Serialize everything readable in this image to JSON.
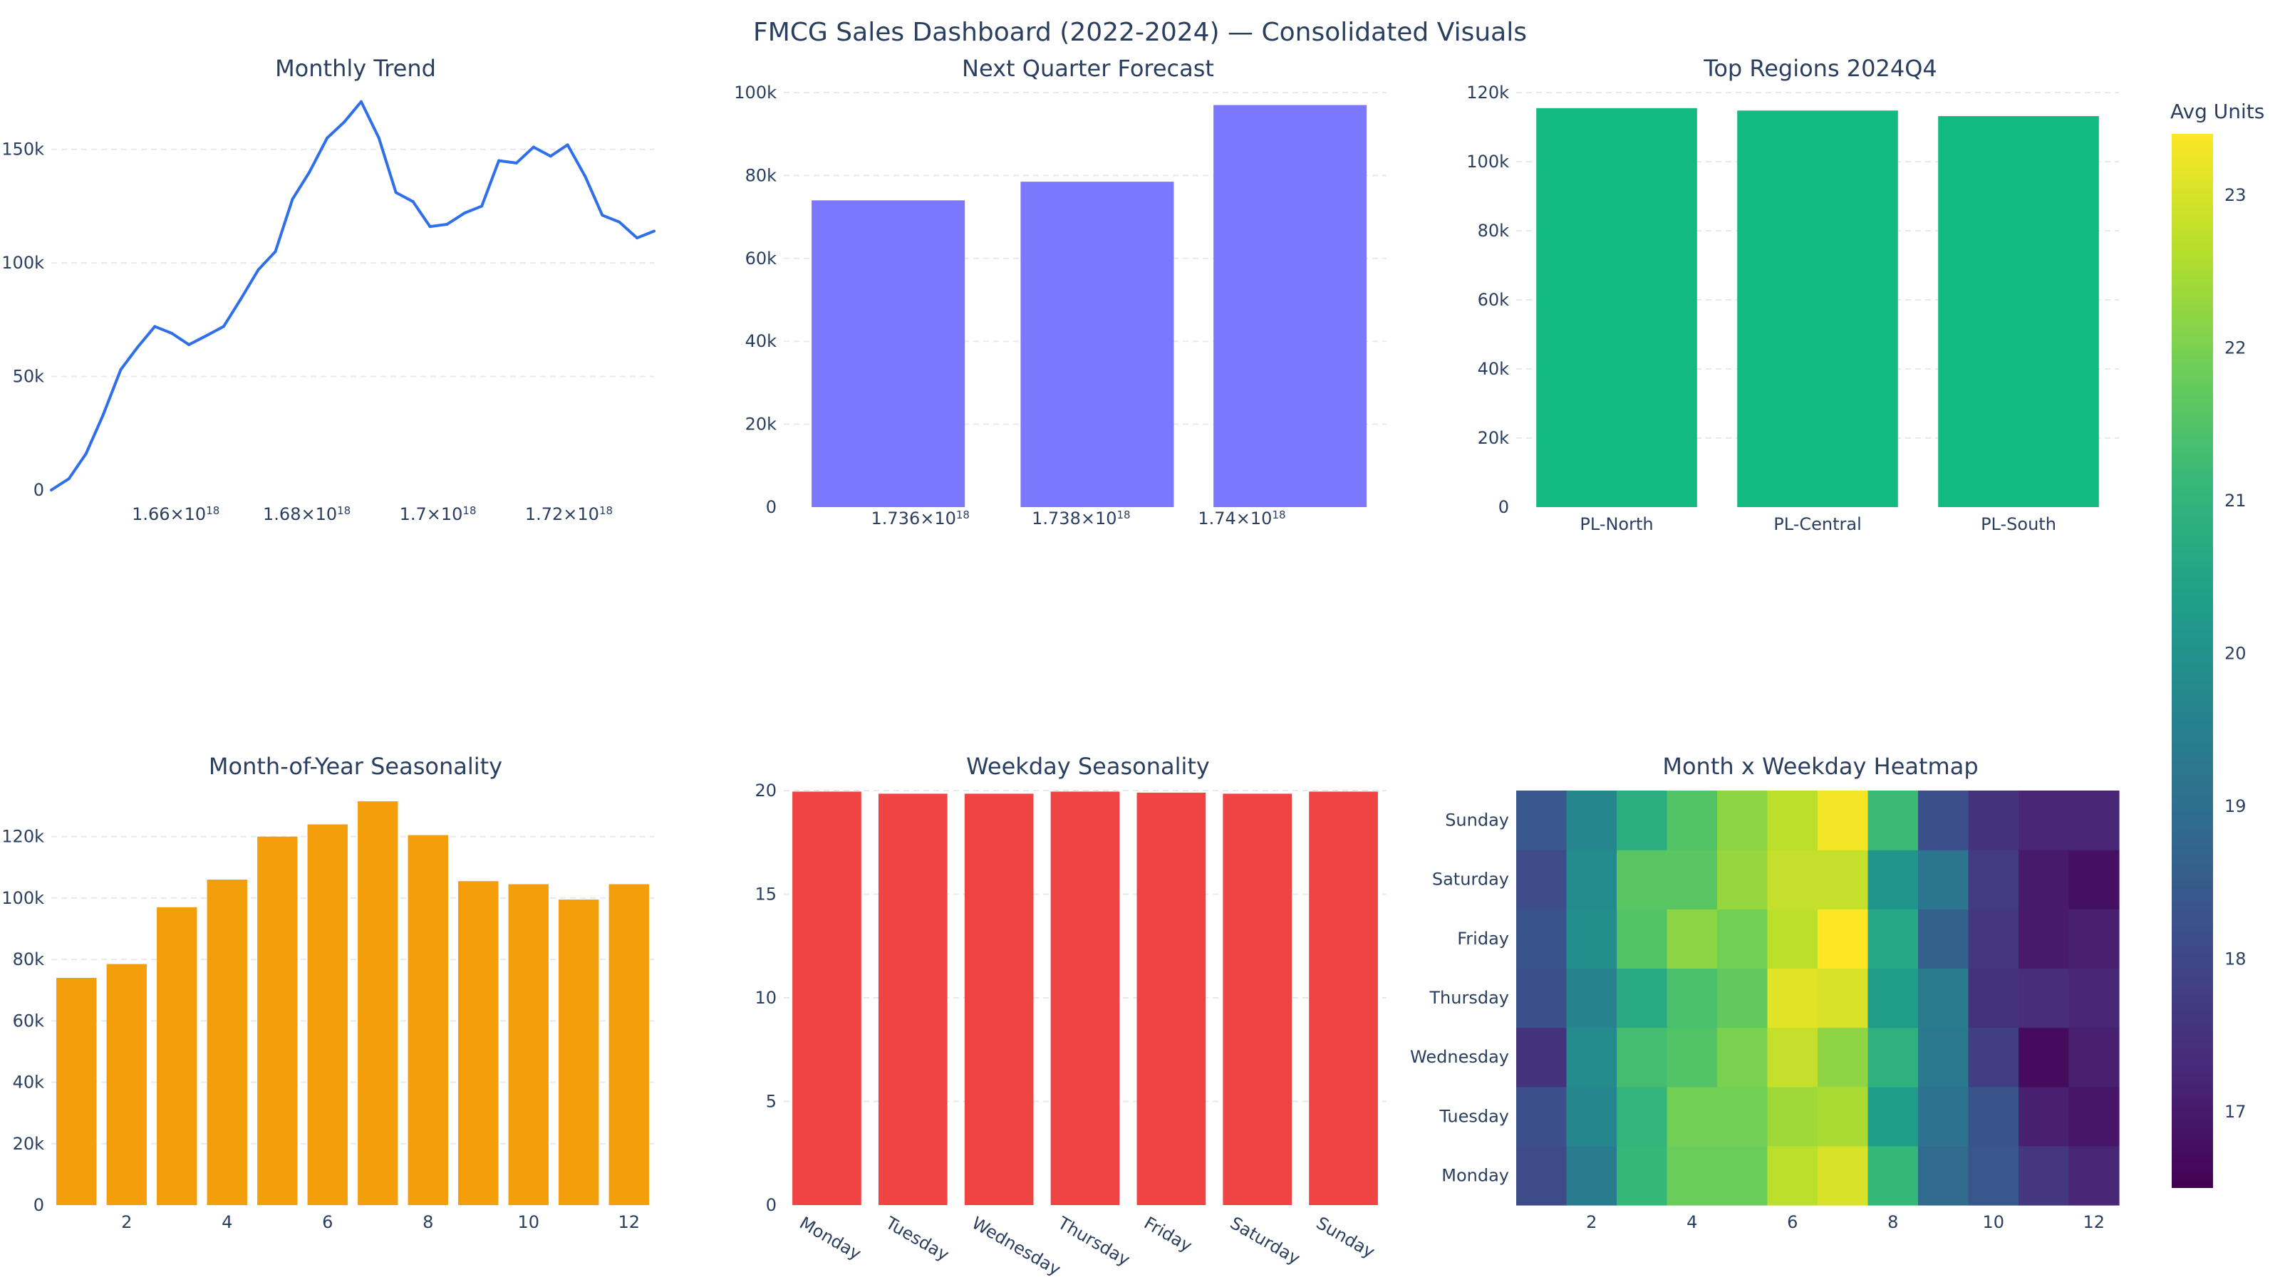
{
  "dashboard": {
    "title": "FMCG Sales Dashboard (2022-2024) — Consolidated Visuals",
    "subtitles": [
      "Monthly Trend",
      "Next Quarter Forecast",
      "Top Regions 2024Q4",
      "Month-of-Year Seasonality",
      "Weekday Seasonality",
      "Month x Weekday Heatmap"
    ]
  },
  "chart_data": [
    {
      "type": "line",
      "title": "Monthly Trend",
      "color": "#2f6fe9",
      "x": [
        1.641e+18,
        1.6437e+18,
        1.6463e+18,
        1.6489e+18,
        1.6516e+18,
        1.6542e+18,
        1.6568e+18,
        1.6594e+18,
        1.662e+18,
        1.6647e+18,
        1.6673e+18,
        1.6699e+18,
        1.6726e+18,
        1.6752e+18,
        1.6778e+18,
        1.6804e+18,
        1.6831e+18,
        1.6857e+18,
        1.6883e+18,
        1.691e+18,
        1.6936e+18,
        1.6962e+18,
        1.6988e+18,
        1.7014e+18,
        1.7041e+18,
        1.7067e+18,
        1.7093e+18,
        1.712e+18,
        1.7146e+18,
        1.7172e+18,
        1.7198e+18,
        1.7225e+18,
        1.7251e+18,
        1.7277e+18,
        1.7304e+18,
        1.733e+18
      ],
      "y": [
        0,
        5000,
        16000,
        33000,
        53000,
        63000,
        72000,
        69000,
        64000,
        68000,
        72000,
        84000,
        97000,
        105000,
        128000,
        140000,
        155000,
        162000,
        171000,
        155000,
        131000,
        127000,
        116000,
        117000,
        122000,
        125000,
        145000,
        144000,
        151000,
        147000,
        152000,
        138000,
        121000,
        118000,
        111000,
        114000
      ],
      "xticks": [
        1.66e+18,
        1.68e+18,
        1.7e+18,
        1.72e+18
      ],
      "xtick_labels": [
        "1.66×10",
        "1.68×10",
        "1.7×10",
        "1.72×10"
      ],
      "xtick_exponent": "18",
      "xlim": [
        1.641e+18,
        1.733e+18
      ],
      "yticks": [
        0,
        50000,
        100000,
        150000
      ],
      "ytick_labels": [
        "0",
        "50k",
        "100k",
        "150k"
      ],
      "ylim": [
        0,
        175000
      ]
    },
    {
      "type": "bar",
      "title": "Next Quarter Forecast",
      "color": "#7b78fe",
      "values": [
        74000,
        78500,
        97000
      ],
      "x": [
        1.7356e+18,
        1.7382e+18,
        1.7406e+18
      ],
      "xticks": [
        1.736e+18,
        1.738e+18,
        1.74e+18
      ],
      "xtick_labels": [
        "1.736×10",
        "1.738×10",
        "1.74×10"
      ],
      "xtick_exponent": "18",
      "xlim": [
        1.7343e+18,
        1.7418e+18
      ],
      "yticks": [
        0,
        20000,
        40000,
        60000,
        80000,
        100000
      ],
      "ytick_labels": [
        "0",
        "20k",
        "40k",
        "60k",
        "80k",
        "100k"
      ],
      "ylim": [
        0,
        100000
      ]
    },
    {
      "type": "bar",
      "title": "Top Regions 2024Q4",
      "color": "#12b981",
      "categories": [
        "PL-North",
        "PL-Central",
        "PL-South"
      ],
      "values": [
        115500,
        114800,
        113200
      ],
      "yticks": [
        0,
        20000,
        40000,
        60000,
        80000,
        100000,
        120000
      ],
      "ytick_labels": [
        "0",
        "20k",
        "40k",
        "60k",
        "80k",
        "100k",
        "120k"
      ],
      "ylim": [
        0,
        120000
      ]
    },
    {
      "type": "bar",
      "title": "Month-of-Year Seasonality",
      "color": "#f59e0b",
      "x": [
        1,
        2,
        3,
        4,
        5,
        6,
        7,
        8,
        9,
        10,
        11,
        12
      ],
      "values": [
        74000,
        78500,
        97000,
        106000,
        120000,
        124000,
        131500,
        120500,
        105500,
        104500,
        99500,
        104500
      ],
      "xticks": [
        2,
        4,
        6,
        8,
        10,
        12
      ],
      "xtick_labels": [
        "2",
        "4",
        "6",
        "8",
        "10",
        "12"
      ],
      "xlim": [
        0.5,
        12.5
      ],
      "yticks": [
        0,
        20000,
        40000,
        60000,
        80000,
        100000,
        120000
      ],
      "ytick_labels": [
        "0",
        "20k",
        "40k",
        "60k",
        "80k",
        "100k",
        "120k"
      ],
      "ylim": [
        0,
        135000
      ]
    },
    {
      "type": "bar",
      "title": "Weekday Seasonality",
      "color": "#ef4444",
      "categories": [
        "Monday",
        "Tuesday",
        "Wednesday",
        "Thursday",
        "Friday",
        "Saturday",
        "Sunday"
      ],
      "values": [
        19.95,
        19.85,
        19.85,
        19.95,
        19.9,
        19.85,
        19.95
      ],
      "yticks": [
        0,
        5,
        10,
        15,
        20
      ],
      "ytick_labels": [
        "0",
        "5",
        "10",
        "15",
        "20"
      ],
      "ylim": [
        0,
        20
      ]
    },
    {
      "type": "heatmap",
      "title": "Month x Weekday Heatmap",
      "x": [
        1,
        2,
        3,
        4,
        5,
        6,
        7,
        8,
        9,
        10,
        11,
        12
      ],
      "y": [
        "Monday",
        "Tuesday",
        "Wednesday",
        "Thursday",
        "Friday",
        "Saturday",
        "Sunday"
      ],
      "z": [
        [
          18.1,
          19.4,
          21.1,
          21.8,
          21.8,
          22.7,
          23.0,
          21.1,
          18.9,
          18.4,
          17.6,
          17.2
        ],
        [
          18.2,
          19.7,
          21.0,
          21.9,
          21.9,
          22.4,
          22.5,
          20.3,
          19.1,
          18.3,
          17.1,
          16.9
        ],
        [
          17.5,
          19.8,
          21.3,
          21.5,
          22.0,
          22.8,
          22.2,
          20.9,
          19.3,
          17.8,
          16.7,
          17.1
        ],
        [
          18.2,
          19.6,
          20.7,
          21.4,
          21.7,
          23.1,
          23.0,
          20.3,
          19.4,
          17.5,
          17.4,
          17.2
        ],
        [
          18.3,
          19.9,
          21.5,
          22.2,
          21.9,
          22.7,
          23.4,
          20.6,
          18.6,
          17.6,
          17.0,
          17.1
        ],
        [
          18.1,
          19.8,
          21.6,
          21.6,
          22.3,
          22.8,
          22.8,
          20.1,
          19.2,
          17.7,
          17.0,
          16.8
        ],
        [
          18.4,
          19.7,
          20.8,
          21.5,
          22.2,
          22.7,
          23.3,
          21.2,
          18.2,
          17.5,
          17.2,
          17.2
        ]
      ],
      "zmin": 16.5,
      "zmax": 23.4,
      "colorscale": "Viridis",
      "colorbar_title": "Avg Units",
      "colorbar_ticks": [
        17,
        18,
        19,
        20,
        21,
        22,
        23
      ],
      "xticks": [
        2,
        4,
        6,
        8,
        10,
        12
      ],
      "xtick_labels": [
        "2",
        "4",
        "6",
        "8",
        "10",
        "12"
      ]
    }
  ]
}
